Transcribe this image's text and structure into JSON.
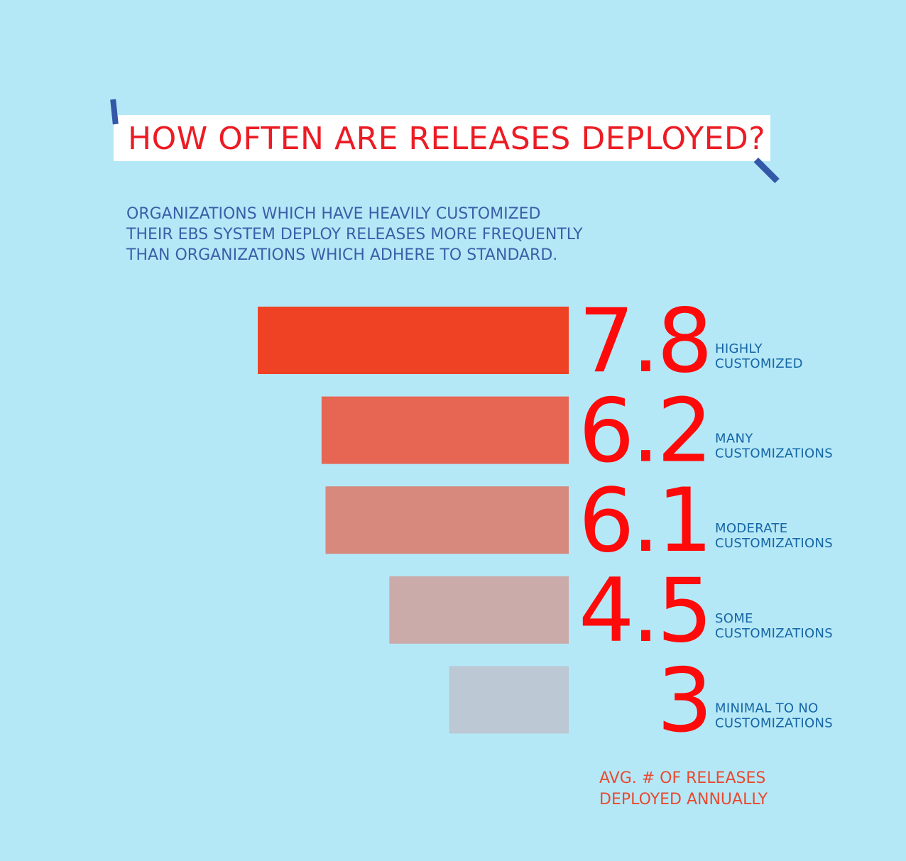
{
  "header": {
    "title": "HOW OFTEN ARE RELEASES DEPLOYED?",
    "subtitle_lines": [
      "ORGANIZATIONS WHICH HAVE HEAVILY CUSTOMIZED",
      "THEIR EBS SYSTEM DEPLOY RELEASES MORE FREQUENTLY",
      "THAN ORGANIZATIONS WHICH ADHERE TO STANDARD."
    ]
  },
  "chart_data": {
    "type": "bar",
    "orientation": "horizontal",
    "title": "HOW OFTEN ARE RELEASES DEPLOYED?",
    "categories": [
      "HIGHLY CUSTOMIZED",
      "MANY CUSTOMIZATIONS",
      "MODERATE CUSTOMIZATIONS",
      "SOME CUSTOMIZATIONS",
      "MINIMAL TO  NO CUSTOMIZATIONS"
    ],
    "values": [
      7.8,
      6.2,
      6.1,
      4.5,
      3
    ],
    "value_labels": [
      "7.8",
      "6.2",
      "6.1",
      "4.5",
      "3"
    ],
    "category_label_lines": [
      [
        "HIGHLY",
        "CUSTOMIZED"
      ],
      [
        "MANY",
        "CUSTOMIZATIONS"
      ],
      [
        "MODERATE",
        "CUSTOMIZATIONS"
      ],
      [
        "SOME",
        "CUSTOMIZATIONS"
      ],
      [
        "MINIMAL TO  NO",
        "CUSTOMIZATIONS"
      ]
    ],
    "bar_colors": [
      "#ef4123",
      "#e66553",
      "#d6897c",
      "#cbaaaa",
      "#bcc8d4"
    ],
    "grid": false,
    "legend": "none"
  },
  "footnote_lines": [
    "AVG. # OF RELEASES",
    "DEPLOYED ANNUALLY"
  ],
  "colors": {
    "background": "#b5e8f7",
    "title": "#ec1c24",
    "subtitle": "#3a5fa8",
    "value": "#ff0a0a",
    "category_label": "#1565a6",
    "footnote": "#e94930",
    "accent_ticks": "#3358a8"
  }
}
